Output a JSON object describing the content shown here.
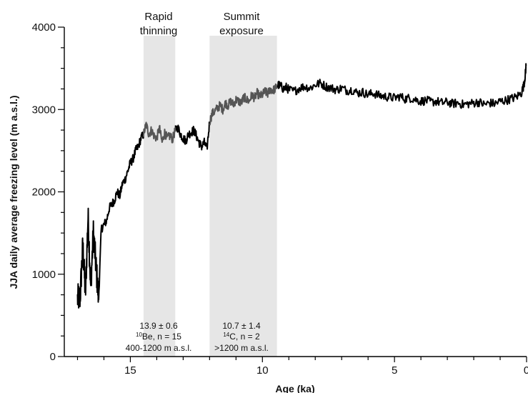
{
  "chart_data": {
    "type": "line",
    "title": "",
    "xlabel": "Age (ka)",
    "ylabel": "JJA daily average freezing level (m a.s.l.)",
    "xlim": [
      17.5,
      0
    ],
    "ylim": [
      0,
      4000
    ],
    "x_ticks": [
      {
        "value": 15,
        "label": "15"
      },
      {
        "value": 10,
        "label": "10"
      },
      {
        "value": 5,
        "label": "5"
      },
      {
        "value": 0,
        "label": "0"
      }
    ],
    "y_ticks": [
      {
        "value": 0,
        "label": "0"
      },
      {
        "value": 1000,
        "label": "1000"
      },
      {
        "value": 2000,
        "label": "2000"
      },
      {
        "value": 3000,
        "label": "3000"
      },
      {
        "value": 4000,
        "label": "4000"
      }
    ],
    "grid": false,
    "legend": "none",
    "periods": [
      {
        "name": "rapid-thinning",
        "label_lines": [
          "Rapid",
          "thinning"
        ],
        "x_range": [
          14.5,
          13.3
        ],
        "annotation": {
          "line1": "13.9 ± 0.6",
          "isotope_sup": "10",
          "isotope_text": "Be, n = 15",
          "line3": "400-1200 m a.s.l."
        }
      },
      {
        "name": "summit-exposure",
        "label_lines": [
          "Summit",
          "exposure"
        ],
        "x_range": [
          12.0,
          9.45
        ],
        "annotation": {
          "line1": "10.7 ± 1.4",
          "isotope_sup": "14",
          "isotope_text": "C, n = 2",
          "line3": ">1200 m a.s.l."
        }
      }
    ],
    "series": [
      {
        "color": "#000000",
        "highlight_color": "#555555",
        "x": [
          17.0,
          16.9,
          16.8,
          16.7,
          16.6,
          16.5,
          16.4,
          16.3,
          16.2,
          16.1,
          16.0,
          15.9,
          15.8,
          15.7,
          15.6,
          15.5,
          15.4,
          15.3,
          15.2,
          15.1,
          15.0,
          14.9,
          14.8,
          14.7,
          14.6,
          14.5,
          14.4,
          14.3,
          14.2,
          14.1,
          14.0,
          13.9,
          13.8,
          13.7,
          13.6,
          13.5,
          13.4,
          13.3,
          13.2,
          13.1,
          13.0,
          12.9,
          12.8,
          12.7,
          12.6,
          12.5,
          12.4,
          12.3,
          12.2,
          12.1,
          12.0,
          11.9,
          11.8,
          11.7,
          11.6,
          11.5,
          11.4,
          11.3,
          11.2,
          11.1,
          11.0,
          10.9,
          10.8,
          10.7,
          10.6,
          10.5,
          10.4,
          10.3,
          10.2,
          10.1,
          10.0,
          9.9,
          9.8,
          9.7,
          9.6,
          9.5,
          9.4,
          9.3,
          9.2,
          9.1,
          9.0,
          8.8,
          8.6,
          8.4,
          8.2,
          8.0,
          7.8,
          7.6,
          7.4,
          7.2,
          7.0,
          6.8,
          6.6,
          6.4,
          6.2,
          6.0,
          5.8,
          5.6,
          5.4,
          5.2,
          5.0,
          4.8,
          4.6,
          4.4,
          4.2,
          4.0,
          3.8,
          3.6,
          3.4,
          3.2,
          3.0,
          2.8,
          2.6,
          2.4,
          2.2,
          2.0,
          1.8,
          1.6,
          1.4,
          1.2,
          1.0,
          0.8,
          0.6,
          0.4,
          0.2,
          0.1,
          0.05,
          0.02
        ],
        "y": [
          700,
          720,
          1350,
          750,
          1700,
          850,
          1500,
          1100,
          700,
          1550,
          1600,
          1650,
          1800,
          1850,
          1900,
          2000,
          1950,
          2100,
          2150,
          2250,
          2350,
          2400,
          2500,
          2550,
          2650,
          2700,
          2820,
          2700,
          2750,
          2680,
          2650,
          2780,
          2600,
          2720,
          2650,
          2680,
          2640,
          2750,
          2780,
          2700,
          2650,
          2620,
          2700,
          2720,
          2750,
          2680,
          2600,
          2550,
          2600,
          2520,
          2850,
          2950,
          2980,
          3020,
          3050,
          3000,
          3080,
          3050,
          3100,
          3060,
          3120,
          3100,
          3080,
          3150,
          3120,
          3100,
          3180,
          3140,
          3200,
          3160,
          3180,
          3220,
          3190,
          3250,
          3230,
          3260,
          3300,
          3280,
          3250,
          3270,
          3240,
          3220,
          3260,
          3280,
          3260,
          3300,
          3320,
          3280,
          3260,
          3240,
          3260,
          3230,
          3240,
          3200,
          3210,
          3180,
          3200,
          3170,
          3160,
          3150,
          3140,
          3160,
          3130,
          3140,
          3120,
          3100,
          3110,
          3090,
          3100,
          3080,
          3090,
          3070,
          3080,
          3060,
          3070,
          3080,
          3090,
          3060,
          3080,
          3070,
          3100,
          3110,
          3130,
          3150,
          3200,
          3300,
          3420,
          3530
        ]
      }
    ]
  }
}
